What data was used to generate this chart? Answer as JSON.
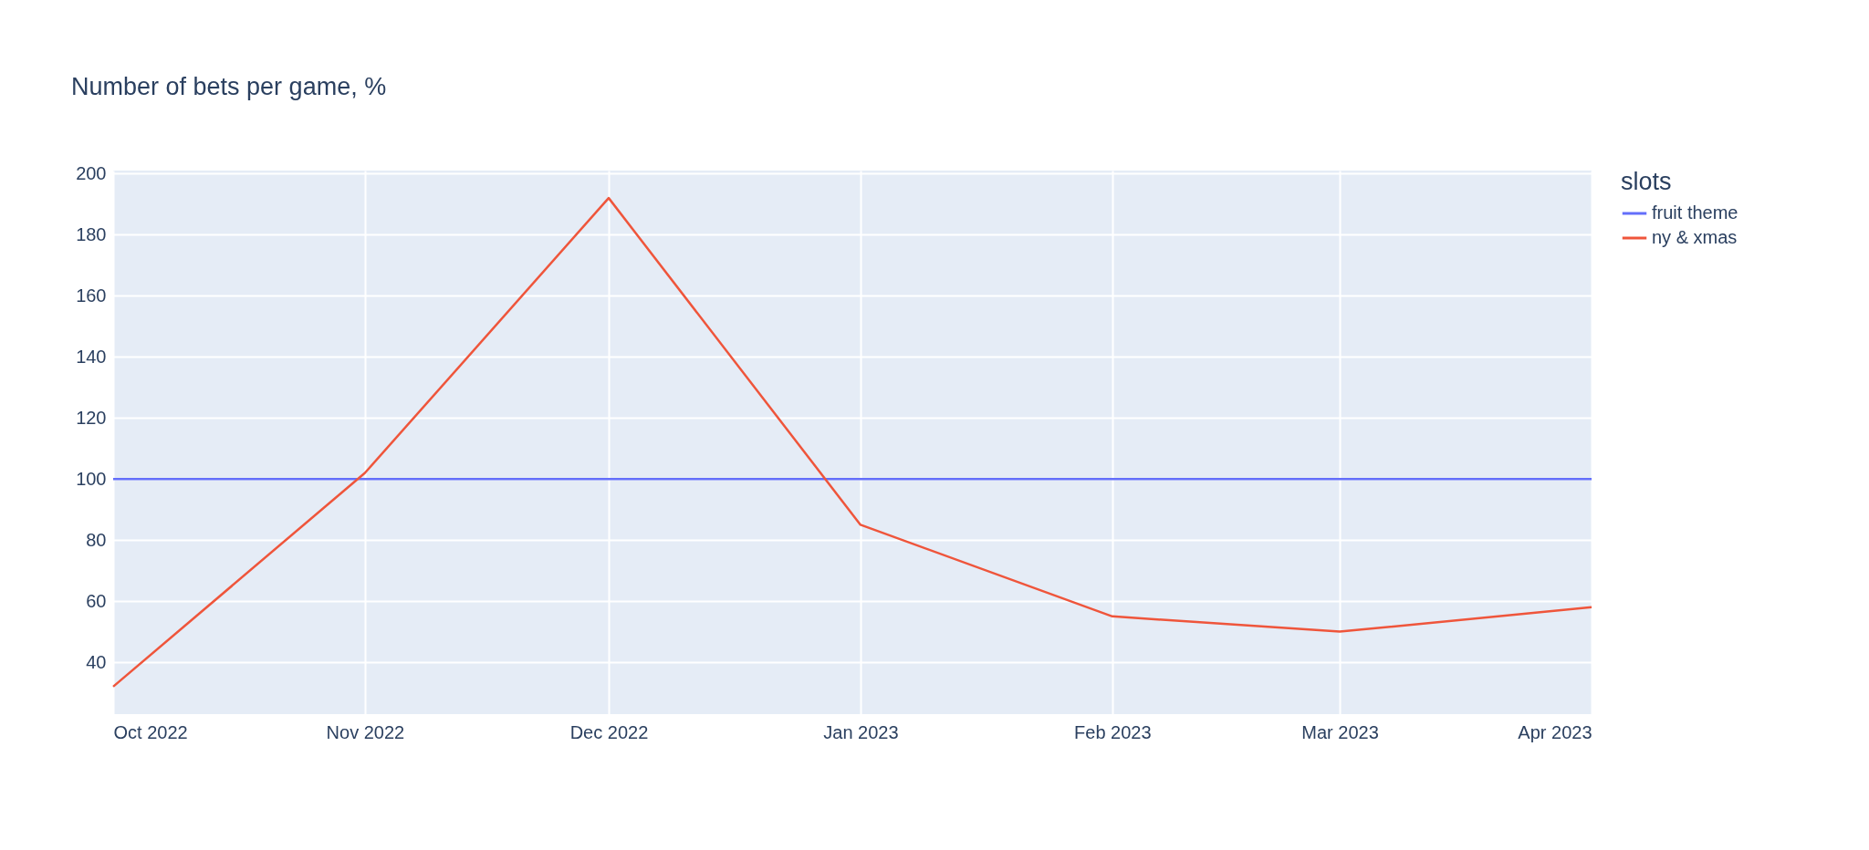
{
  "chart_data": {
    "type": "line",
    "title": "Number of bets per game, %",
    "legend_title": "slots",
    "x": [
      "2022-10-01",
      "2022-11-01",
      "2022-12-01",
      "2023-01-01",
      "2023-02-01",
      "2023-03-01",
      "2023-04-01"
    ],
    "series": [
      {
        "name": "fruit theme",
        "color": "#636efa",
        "values": [
          100,
          100,
          100,
          100,
          100,
          100,
          100
        ]
      },
      {
        "name": "ny & xmas",
        "color": "#ef553b",
        "values": [
          32,
          102,
          192,
          85,
          55,
          50,
          58
        ]
      }
    ],
    "xlim": [
      "2022-10-01",
      "2023-04-01"
    ],
    "xticks": [
      {
        "value": "2022-10-01",
        "label": "Oct 2022"
      },
      {
        "value": "2022-11-01",
        "label": "Nov 2022"
      },
      {
        "value": "2022-12-01",
        "label": "Dec 2022"
      },
      {
        "value": "2023-01-01",
        "label": "Jan 2023"
      },
      {
        "value": "2023-02-01",
        "label": "Feb 2023"
      },
      {
        "value": "2023-03-01",
        "label": "Mar 2023"
      },
      {
        "value": "2023-04-01",
        "label": "Apr 2023"
      }
    ],
    "ylim": [
      23,
      201
    ],
    "yticks": [
      40,
      60,
      80,
      100,
      120,
      140,
      160,
      180,
      200
    ],
    "grid": true,
    "legend": "top right"
  }
}
